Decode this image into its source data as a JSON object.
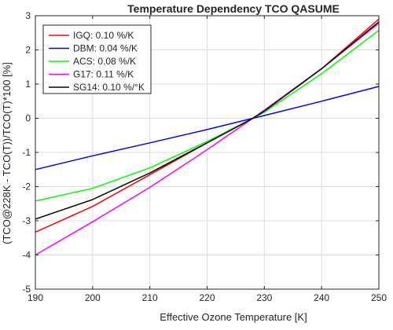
{
  "chart_data": {
    "type": "line",
    "title": "Temperature Dependency TCO QASUME",
    "xlabel": "Effective Ozone Temperature [K]",
    "ylabel": "(TCO@228K - TCO(T))/TCO(T)*100 [%]",
    "xlim": [
      190,
      250
    ],
    "ylim": [
      -5,
      3
    ],
    "xticks": [
      190,
      200,
      210,
      220,
      230,
      240,
      250
    ],
    "yticks": [
      -5,
      -4,
      -3,
      -2,
      -1,
      0,
      1,
      2,
      3
    ],
    "grid": true,
    "legend_position": "top-left",
    "x": [
      190,
      200,
      210,
      220,
      228,
      230,
      240,
      250
    ],
    "series": [
      {
        "name": "IGQ: 0.10 %/K",
        "color": "#ff0000",
        "values": [
          -3.33,
          -2.58,
          -1.65,
          -0.72,
          0.0,
          0.21,
          1.45,
          2.9
        ]
      },
      {
        "name": "DBM: 0.04 %/K",
        "color": "#0000ff",
        "values": [
          -1.5,
          -1.1,
          -0.72,
          -0.33,
          0.0,
          0.08,
          0.5,
          0.93
        ]
      },
      {
        "name": "ACS: 0.08 %/K",
        "color": "#00ff00",
        "values": [
          -2.42,
          -2.05,
          -1.45,
          -0.68,
          0.0,
          0.18,
          1.3,
          2.57
        ]
      },
      {
        "name": "G17: 0.11 %/K",
        "color": "#ff00ff",
        "values": [
          -4.0,
          -3.03,
          -2.02,
          -0.92,
          0.0,
          0.24,
          1.45,
          2.78
        ]
      },
      {
        "name": "SG14: 0.10 %/°K",
        "color": "#000000",
        "values": [
          -2.95,
          -2.38,
          -1.6,
          -0.72,
          0.0,
          0.21,
          1.45,
          2.82
        ]
      }
    ]
  }
}
